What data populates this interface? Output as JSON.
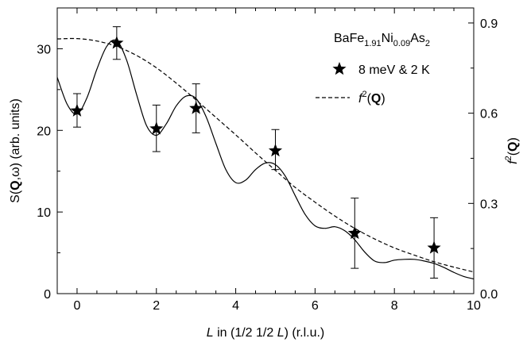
{
  "chart_data": {
    "type": "line",
    "x_axis": {
      "label_parts": [
        {
          "t": "L",
          "italic": true
        },
        {
          "t": " in (1/2 1/2 "
        },
        {
          "t": "L",
          "italic": true
        },
        {
          "t": ") (r.l.u.)"
        }
      ],
      "lim": [
        -0.5,
        10
      ],
      "ticks": [
        0,
        2,
        4,
        6,
        8,
        10
      ],
      "tick_labels": [
        "0",
        "2",
        "4",
        "6",
        "8",
        "10"
      ]
    },
    "y_left": {
      "label_parts": [
        {
          "t": "S("
        },
        {
          "t": "Q",
          "bold": true
        },
        {
          "t": ",ω) (arb. units)"
        }
      ],
      "lim": [
        0,
        35
      ],
      "ticks": [
        0,
        10,
        20,
        30
      ],
      "tick_labels": [
        "0",
        "10",
        "20",
        "30"
      ]
    },
    "y_right": {
      "label_parts": [
        {
          "t": "f",
          "italic": true
        },
        {
          "t": "2",
          "sup": true
        },
        {
          "t": "("
        },
        {
          "t": "Q",
          "bold": true
        },
        {
          "t": ")"
        }
      ],
      "lim": [
        0,
        0.95
      ],
      "ticks": [
        0,
        0.3,
        0.6,
        0.9
      ],
      "tick_labels": [
        "0.0",
        "0.3",
        "0.6",
        "0.9"
      ]
    },
    "annotation_parts": [
      {
        "t": "BaFe"
      },
      {
        "t": "1.91",
        "sub": true
      },
      {
        "t": "Ni"
      },
      {
        "t": "0.09",
        "sub": true
      },
      {
        "t": "As"
      },
      {
        "t": "2",
        "sub": true
      }
    ],
    "series": [
      {
        "name": "8 meV & 2 K",
        "kind": "scatter",
        "marker": "star",
        "axis": "left",
        "x": [
          0,
          1,
          2,
          3,
          5,
          7,
          9
        ],
        "y": [
          22.4,
          30.7,
          20.2,
          22.7,
          17.5,
          7.4,
          5.6
        ],
        "err_low": [
          2.0,
          2.0,
          2.8,
          3.0,
          2.3,
          4.3,
          3.7
        ],
        "err_high": [
          2.1,
          2.0,
          2.9,
          3.0,
          2.6,
          4.3,
          3.7
        ]
      },
      {
        "name_parts": [
          {
            "t": "f",
            "italic": true
          },
          {
            "t": "2",
            "sup": true
          },
          {
            "t": "("
          },
          {
            "t": "Q",
            "bold": true
          },
          {
            "t": ")"
          }
        ],
        "kind": "line",
        "style": "dashed",
        "axis": "right",
        "x": [
          -0.5,
          0,
          0.5,
          1,
          1.5,
          2,
          2.5,
          3,
          3.5,
          4,
          4.5,
          5,
          5.5,
          6,
          6.5,
          7,
          7.5,
          8,
          8.5,
          9,
          9.5,
          10
        ],
        "y": [
          0.847,
          0.848,
          0.84,
          0.822,
          0.792,
          0.751,
          0.7,
          0.644,
          0.586,
          0.528,
          0.468,
          0.41,
          0.353,
          0.304,
          0.258,
          0.217,
          0.182,
          0.152,
          0.128,
          0.106,
          0.088,
          0.072
        ]
      },
      {
        "name": "",
        "kind": "line",
        "style": "solid",
        "axis": "left",
        "x": [
          -0.5,
          -0.25,
          0,
          0.25,
          0.5,
          0.75,
          1,
          1.25,
          1.5,
          1.75,
          2,
          2.25,
          2.5,
          2.75,
          3,
          3.25,
          3.5,
          3.75,
          4,
          4.25,
          4.5,
          4.75,
          5,
          5.25,
          5.5,
          5.75,
          6,
          6.25,
          6.5,
          6.75,
          7,
          7.25,
          7.5,
          7.75,
          8,
          8.25,
          8.5,
          8.75,
          9,
          9.25,
          9.5,
          9.75,
          10
        ],
        "y": [
          26.5,
          23.2,
          22.0,
          24.0,
          27.5,
          30.3,
          31.0,
          28.6,
          24.4,
          20.6,
          19.4,
          20.8,
          23.0,
          24.2,
          23.9,
          21.7,
          18.4,
          15.2,
          13.6,
          13.9,
          15.2,
          16.0,
          15.8,
          14.4,
          12.0,
          9.7,
          8.3,
          8.0,
          8.2,
          7.7,
          6.6,
          5.1,
          4.0,
          3.8,
          4.1,
          4.2,
          4.2,
          4.0,
          3.7,
          3.2,
          2.6,
          2.1,
          1.8
        ]
      }
    ],
    "legend_location": "upper-right",
    "grid": false
  }
}
